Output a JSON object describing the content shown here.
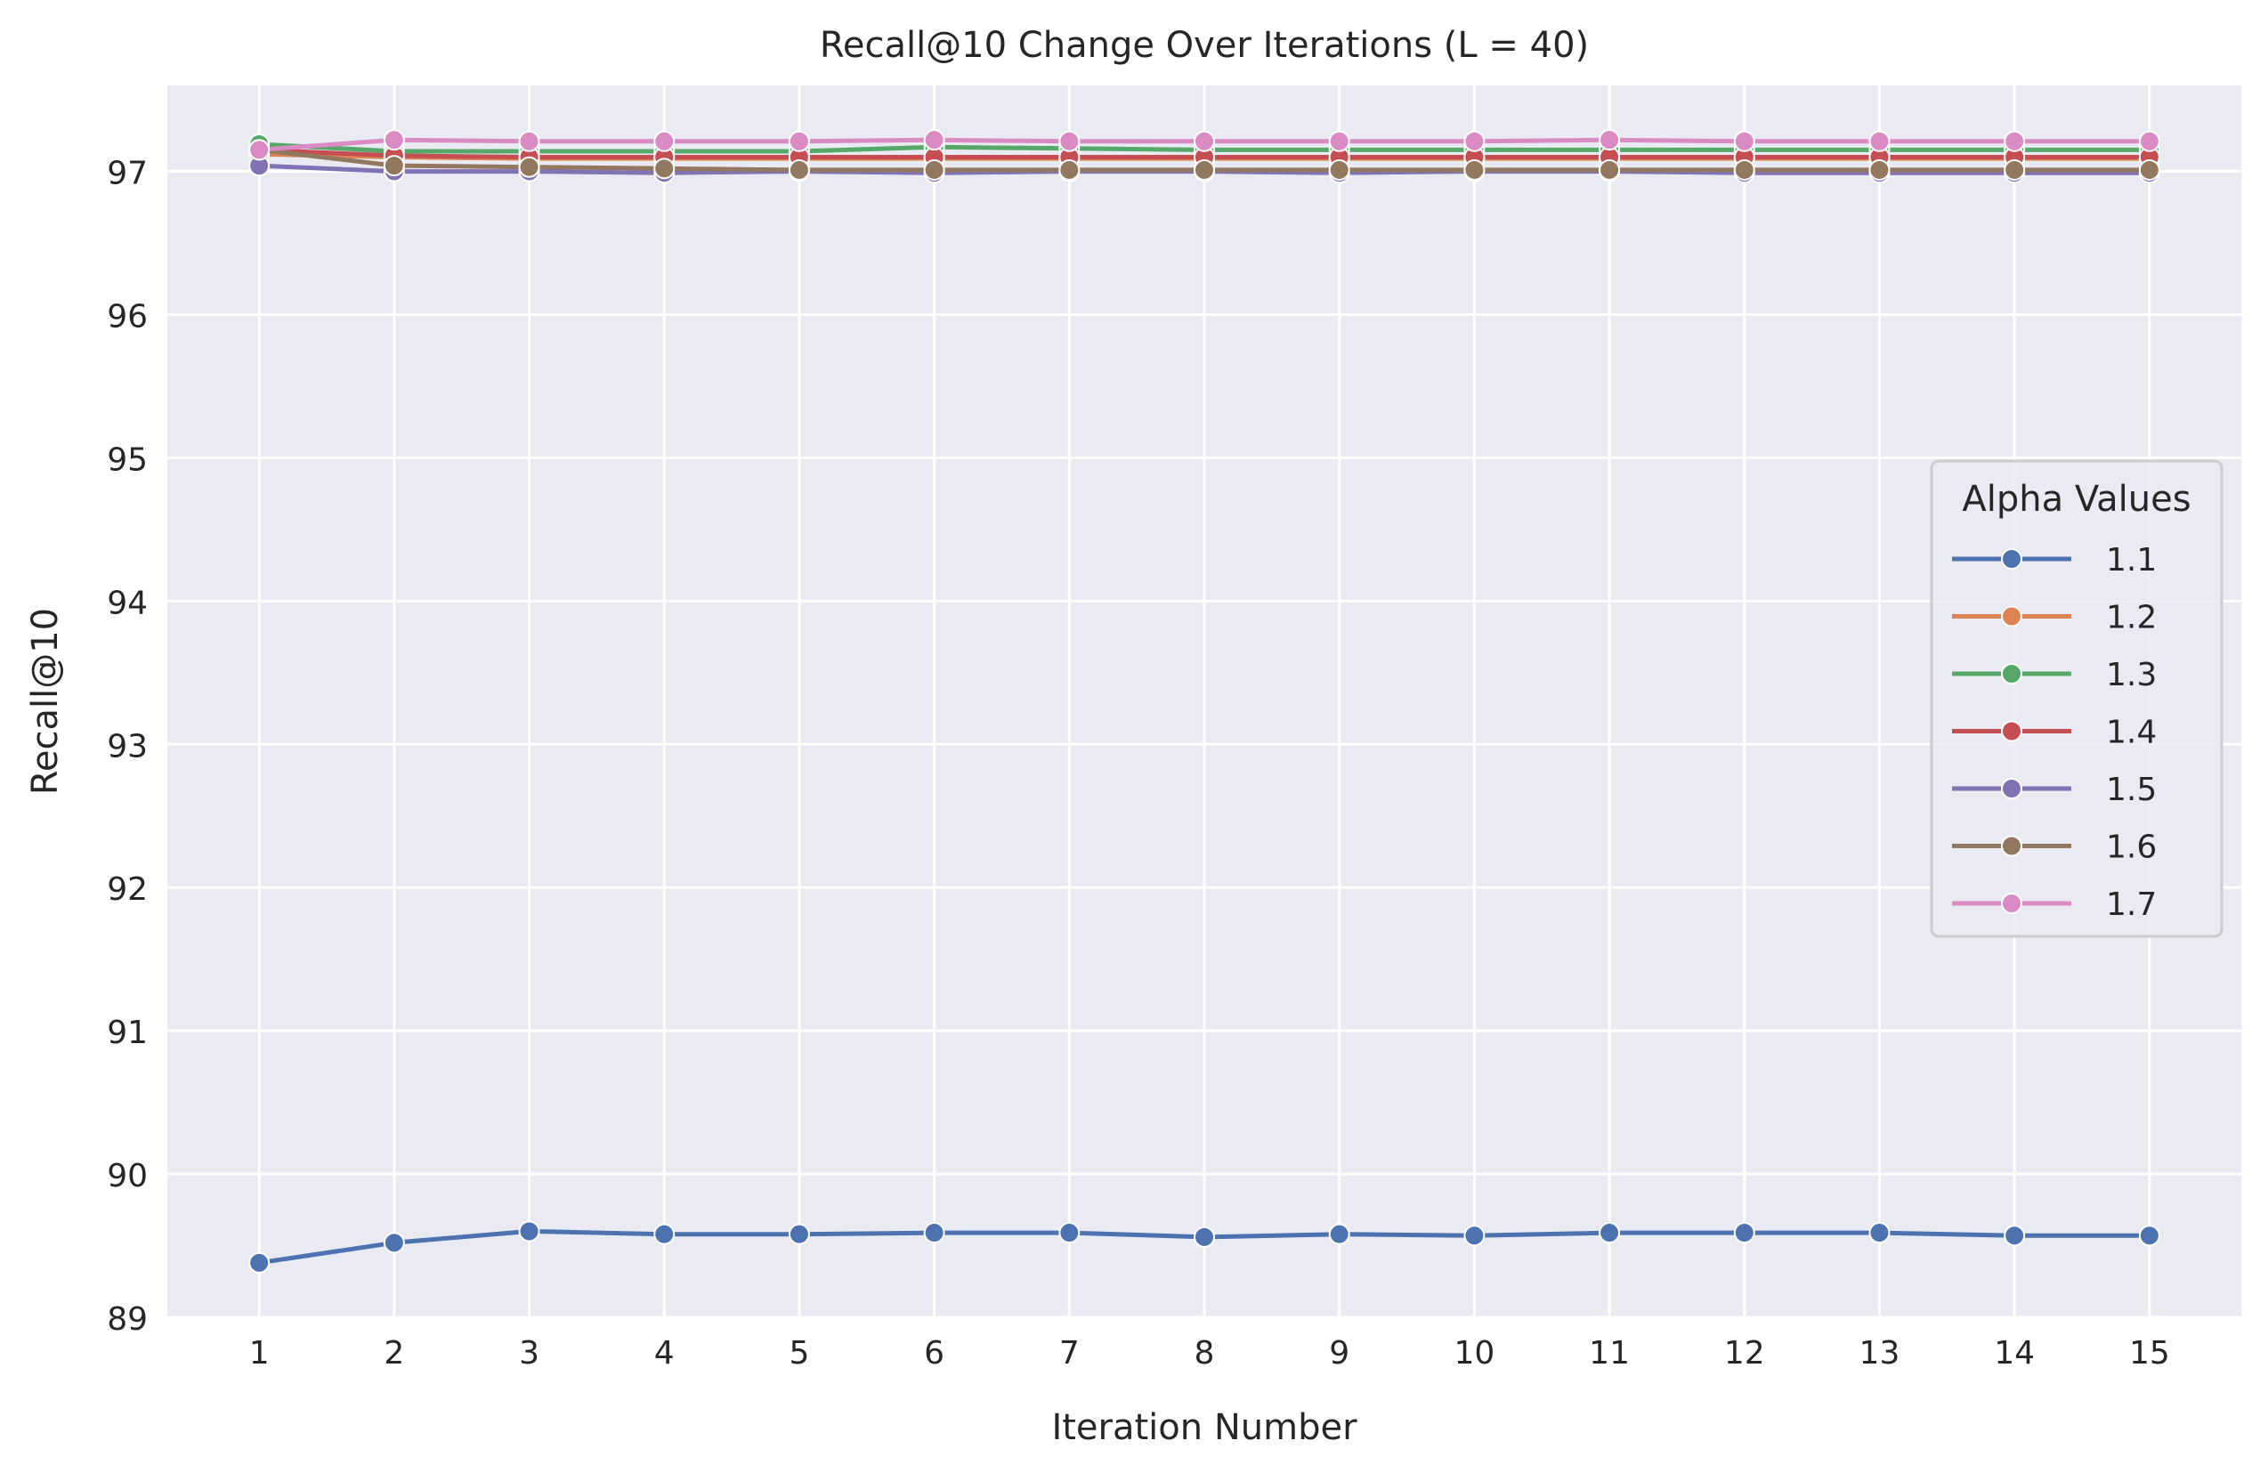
{
  "chart_data": {
    "type": "line",
    "title": "Recall@10 Change Over Iterations (L = 40)",
    "xlabel": "Iteration Number",
    "ylabel": "Recall@10",
    "x": [
      1,
      2,
      3,
      4,
      5,
      6,
      7,
      8,
      9,
      10,
      11,
      12,
      13,
      14,
      15
    ],
    "x_tick_labels": [
      "1",
      "2",
      "3",
      "4",
      "5",
      "6",
      "7",
      "8",
      "9",
      "10",
      "11",
      "12",
      "13",
      "14",
      "15"
    ],
    "y_tick_labels": [
      "89",
      "90",
      "91",
      "92",
      "93",
      "94",
      "95",
      "96",
      "97"
    ],
    "y_ticks": [
      89,
      90,
      91,
      92,
      93,
      94,
      95,
      96,
      97
    ],
    "ylim": [
      89,
      97.6
    ],
    "xlim": [
      0.32,
      15.68
    ],
    "grid": true,
    "background": "#eaeaf2",
    "legend": {
      "title": "Alpha Values",
      "placement": "center-right"
    },
    "series": [
      {
        "name": "1.1",
        "color": "#4c72b0",
        "values": [
          89.38,
          89.52,
          89.6,
          89.58,
          89.58,
          89.59,
          89.59,
          89.56,
          89.58,
          89.57,
          89.59,
          89.59,
          89.59,
          89.57,
          89.57
        ]
      },
      {
        "name": "1.2",
        "color": "#dd8452",
        "values": [
          97.12,
          97.1,
          97.09,
          97.09,
          97.09,
          97.09,
          97.09,
          97.09,
          97.09,
          97.09,
          97.09,
          97.09,
          97.09,
          97.09,
          97.09
        ]
      },
      {
        "name": "1.3",
        "color": "#55a868",
        "values": [
          97.19,
          97.14,
          97.14,
          97.14,
          97.14,
          97.17,
          97.16,
          97.15,
          97.15,
          97.15,
          97.15,
          97.15,
          97.15,
          97.15,
          97.15
        ]
      },
      {
        "name": "1.4",
        "color": "#c44e52",
        "values": [
          97.15,
          97.11,
          97.1,
          97.1,
          97.1,
          97.1,
          97.1,
          97.1,
          97.1,
          97.1,
          97.1,
          97.1,
          97.1,
          97.1,
          97.1
        ]
      },
      {
        "name": "1.5",
        "color": "#8172b3",
        "values": [
          97.04,
          97.0,
          97.0,
          96.99,
          97.0,
          96.99,
          97.0,
          97.0,
          96.99,
          97.0,
          97.0,
          96.99,
          96.99,
          96.99,
          96.99
        ]
      },
      {
        "name": "1.6",
        "color": "#937860",
        "values": [
          97.15,
          97.04,
          97.03,
          97.02,
          97.01,
          97.01,
          97.01,
          97.01,
          97.01,
          97.01,
          97.01,
          97.01,
          97.01,
          97.01,
          97.01
        ]
      },
      {
        "name": "1.7",
        "color": "#da8bc3",
        "values": [
          97.15,
          97.22,
          97.21,
          97.21,
          97.21,
          97.22,
          97.21,
          97.21,
          97.21,
          97.21,
          97.22,
          97.21,
          97.21,
          97.21,
          97.21
        ]
      }
    ]
  }
}
